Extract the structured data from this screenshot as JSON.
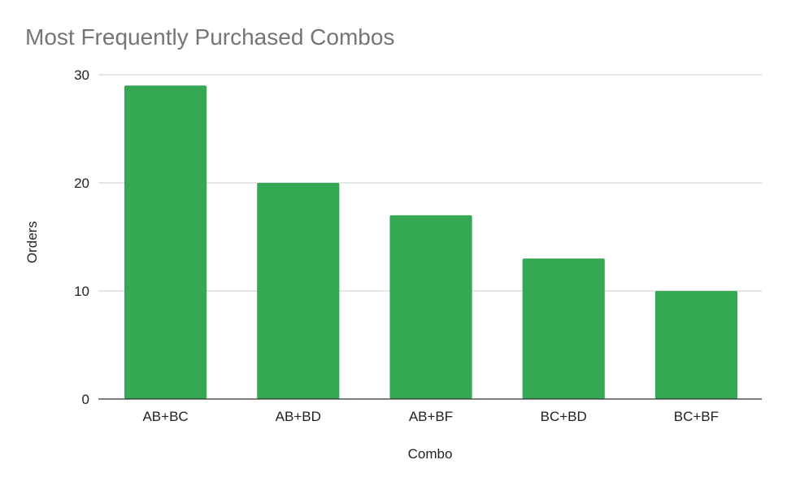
{
  "chart_data": {
    "type": "bar",
    "title": "Most Frequently Purchased Combos",
    "xlabel": "Combo",
    "ylabel": "Orders",
    "categories": [
      "AB+BC",
      "AB+BD",
      "AB+BF",
      "BC+BD",
      "BC+BF"
    ],
    "values": [
      29,
      20,
      17,
      13,
      10
    ],
    "ylim": [
      0,
      30
    ],
    "yticks": [
      0,
      10,
      20,
      30
    ],
    "grid": true,
    "legend": "none",
    "bar_color": "#34a853",
    "title_color": "#757575",
    "grid_color": "#cccccc",
    "axis_color": "#333333"
  }
}
